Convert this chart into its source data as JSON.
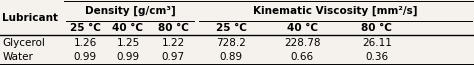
{
  "col_headers_group": [
    "Density [g/cm³]",
    "Kinematic Viscosity [mm²/s]"
  ],
  "col_headers_temp": [
    "25 °C",
    "40 °C",
    "80 °C",
    "25 °C",
    "40 °C",
    "80 °C"
  ],
  "lubricant_label": "Lubricant",
  "rows": [
    [
      "Glycerol",
      "1.26",
      "1.25",
      "1.22",
      "728.2",
      "228.78",
      "26.11"
    ],
    [
      "Water",
      "0.99",
      "0.99",
      "0.97",
      "0.89",
      "0.66",
      "0.36"
    ]
  ],
  "background_color": "#f5f2ee",
  "fontsize": 7.5,
  "lw_thick": 1.0,
  "lw_thin": 0.7
}
